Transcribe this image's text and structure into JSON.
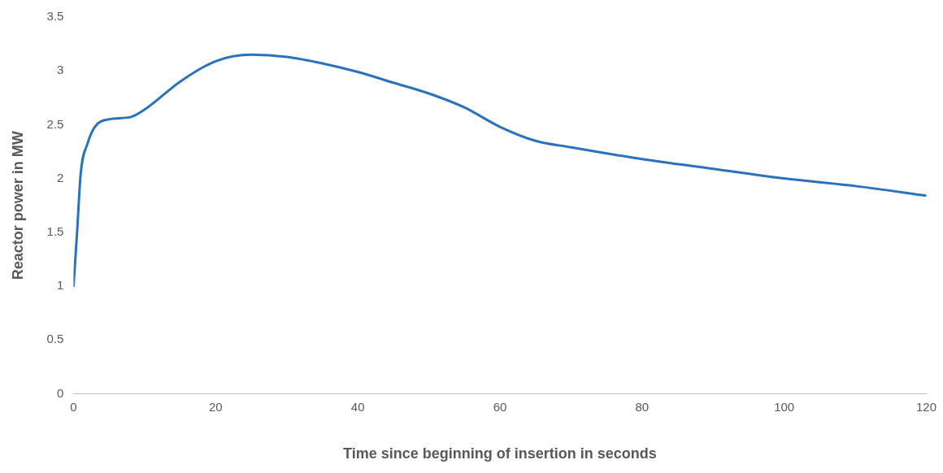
{
  "chart_data": {
    "type": "line",
    "xlabel": "Time since beginning of insertion in seconds",
    "ylabel": "Reactor power in MW",
    "x": [
      0,
      0.5,
      1,
      2,
      3,
      5,
      8,
      10,
      15,
      20,
      25,
      30,
      35,
      40,
      45,
      50,
      55,
      60,
      65,
      70,
      80,
      90,
      100,
      110,
      120
    ],
    "series": [
      {
        "color": "#2a72bb",
        "values": [
          1.0,
          1.5,
          2.04,
          2.33,
          2.48,
          2.55,
          2.57,
          2.64,
          2.9,
          3.09,
          3.15,
          3.13,
          3.07,
          2.99,
          2.89,
          2.79,
          2.66,
          2.48,
          2.35,
          2.29,
          2.18,
          2.09,
          2.0,
          1.93,
          1.84
        ]
      }
    ],
    "xlim": [
      0,
      120
    ],
    "xticks": [
      0,
      20,
      40,
      60,
      80,
      100,
      120
    ],
    "ylim": [
      0,
      3.5
    ],
    "yticks": [
      0,
      0.5,
      1,
      1.5,
      2,
      2.5,
      3,
      3.5
    ],
    "grid": false,
    "legend": false,
    "marker": "none",
    "line_style": "solid"
  }
}
